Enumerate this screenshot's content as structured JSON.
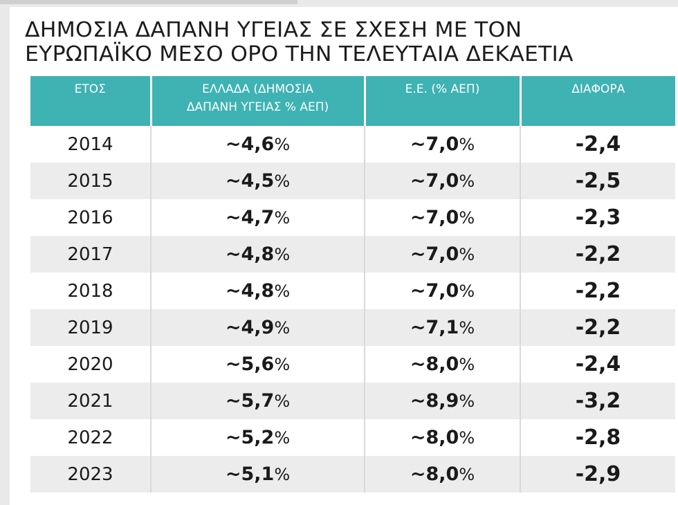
{
  "title": {
    "line1": "ΔΗΜΟΣΙΑ ΔΑΠΑΝΗ ΥΓΕΙΑΣ ΣΕ ΣΧΕΣΗ ΜΕ ΤΟΝ",
    "line2": "ΕΥΡΩΠΑΪΚΟ ΜΕΣΟ ΟΡΟ ΤΗΝ ΤΕΛΕΥΤΑΙΑ ΔΕΚΑΕΤΙΑ"
  },
  "headers": {
    "year": "ΕΤΟΣ",
    "greece_line1": "ΕΛΛΑΔΑ (ΔΗΜΟΣΙΑ",
    "greece_line2": "ΔΑΠΑΝΗ ΥΓΕΙΑΣ % ΑΕΠ)",
    "eu": "Ε.Ε. (% ΑΕΠ)",
    "diff": "ΔΙΑΦΟΡΑ"
  },
  "colors": {
    "header_bg": "#3fb2b3",
    "alt_row_bg": "#ececec"
  },
  "rows": [
    {
      "year": "2014",
      "greece": "~4,6",
      "greece_unit": "%",
      "eu": "~7,0",
      "eu_unit": "%",
      "diff": "-2,4"
    },
    {
      "year": "2015",
      "greece": "~4,5",
      "greece_unit": "%",
      "eu": "~7,0",
      "eu_unit": "%",
      "diff": "-2,5"
    },
    {
      "year": "2016",
      "greece": "~4,7",
      "greece_unit": "%",
      "eu": "~7,0",
      "eu_unit": "%",
      "diff": "-2,3"
    },
    {
      "year": "2017",
      "greece": "~4,8",
      "greece_unit": "%",
      "eu": "~7,0",
      "eu_unit": "%",
      "diff": "-2,2"
    },
    {
      "year": "2018",
      "greece": "~4,8",
      "greece_unit": "%",
      "eu": "~7,0",
      "eu_unit": "%",
      "diff": "-2,2"
    },
    {
      "year": "2019",
      "greece": "~4,9",
      "greece_unit": "%",
      "eu": "~7,1",
      "eu_unit": "%",
      "diff": "-2,2"
    },
    {
      "year": "2020",
      "greece": "~5,6",
      "greece_unit": "%",
      "eu": "~8,0",
      "eu_unit": "%",
      "diff": "-2,4"
    },
    {
      "year": "2021",
      "greece": "~5,7",
      "greece_unit": "%",
      "eu": "~8,9",
      "eu_unit": "%",
      "diff": "-3,2"
    },
    {
      "year": "2022",
      "greece": "~5,2",
      "greece_unit": "%",
      "eu": "~8,0",
      "eu_unit": "%",
      "diff": "-2,8"
    },
    {
      "year": "2023",
      "greece": "~5,1",
      "greece_unit": "%",
      "eu": "~8,0",
      "eu_unit": "%",
      "diff": "-2,9"
    }
  ]
}
